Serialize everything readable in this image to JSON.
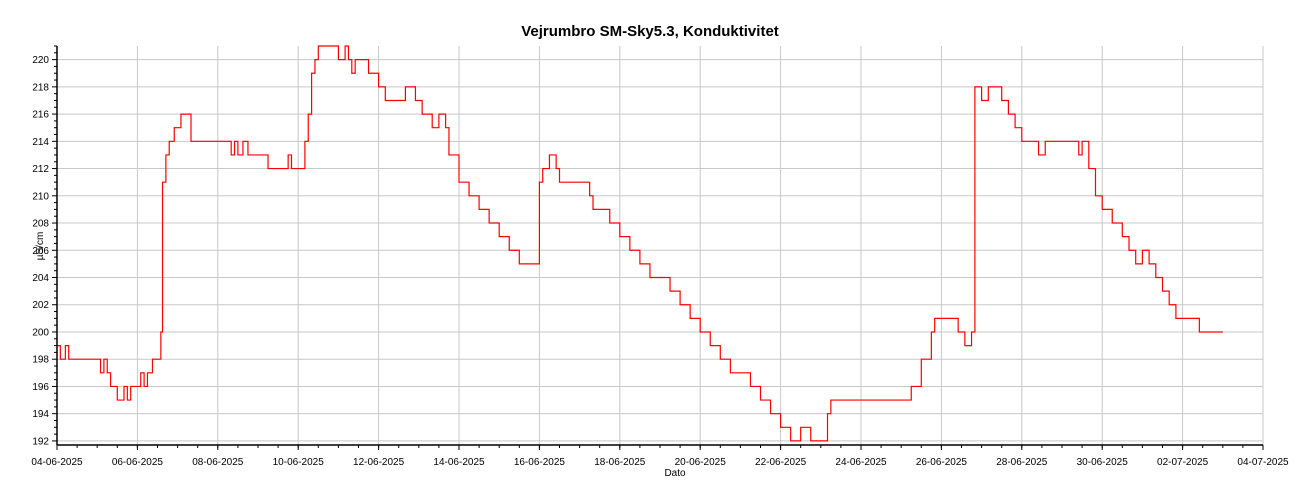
{
  "chart_data": {
    "type": "line",
    "title": "Vejrumbro SM-Sky5.3, Konduktivitet",
    "xlabel": "Dato",
    "ylabel": "µS/cm",
    "ylim": [
      191.7,
      221
    ],
    "xlim": [
      "04-06-2025",
      "04-07-2025"
    ],
    "grid": true,
    "x_ticks": [
      "04-06-2025",
      "06-06-2025",
      "08-06-2025",
      "10-06-2025",
      "12-06-2025",
      "14-06-2025",
      "16-06-2025",
      "18-06-2025",
      "20-06-2025",
      "22-06-2025",
      "24-06-2025",
      "26-06-2025",
      "28-06-2025",
      "30-06-2025",
      "02-07-2025",
      "04-07-2025"
    ],
    "y_ticks": [
      192,
      194,
      196,
      198,
      200,
      202,
      204,
      206,
      208,
      210,
      212,
      214,
      216,
      218,
      220
    ],
    "series": [
      {
        "color": "#ff0000",
        "points": [
          [
            "04-06-2025 00:00",
            199
          ],
          [
            "04-06-2025 02:00",
            198
          ],
          [
            "04-06-2025 05:00",
            199
          ],
          [
            "04-06-2025 07:00",
            198
          ],
          [
            "04-06-2025 16:00",
            198
          ],
          [
            "04-06-2025 23:00",
            198
          ],
          [
            "05-06-2025 02:00",
            197
          ],
          [
            "05-06-2025 04:00",
            198
          ],
          [
            "05-06-2025 06:00",
            197
          ],
          [
            "05-06-2025 08:00",
            196
          ],
          [
            "05-06-2025 12:00",
            195
          ],
          [
            "05-06-2025 16:00",
            196
          ],
          [
            "05-06-2025 18:00",
            195
          ],
          [
            "05-06-2025 20:00",
            196
          ],
          [
            "06-06-2025 00:00",
            196
          ],
          [
            "06-06-2025 02:00",
            197
          ],
          [
            "06-06-2025 04:00",
            196
          ],
          [
            "06-06-2025 06:00",
            197
          ],
          [
            "06-06-2025 09:00",
            198
          ],
          [
            "06-06-2025 13:00",
            198
          ],
          [
            "06-06-2025 14:00",
            200
          ],
          [
            "06-06-2025 15:00",
            211
          ],
          [
            "06-06-2025 17:00",
            213
          ],
          [
            "06-06-2025 19:00",
            214
          ],
          [
            "06-06-2025 22:00",
            215
          ],
          [
            "07-06-2025 02:00",
            216
          ],
          [
            "07-06-2025 06:00",
            216
          ],
          [
            "07-06-2025 08:00",
            214
          ],
          [
            "07-06-2025 12:00",
            214
          ],
          [
            "07-06-2025 18:00",
            214
          ],
          [
            "08-06-2025 00:00",
            214
          ],
          [
            "08-06-2025 06:00",
            214
          ],
          [
            "08-06-2025 08:00",
            213
          ],
          [
            "08-06-2025 10:00",
            214
          ],
          [
            "08-06-2025 12:00",
            213
          ],
          [
            "08-06-2025 15:00",
            214
          ],
          [
            "08-06-2025 18:00",
            213
          ],
          [
            "09-06-2025 00:00",
            213
          ],
          [
            "09-06-2025 06:00",
            212
          ],
          [
            "09-06-2025 12:00",
            212
          ],
          [
            "09-06-2025 18:00",
            213
          ],
          [
            "09-06-2025 20:00",
            212
          ],
          [
            "10-06-2025 00:00",
            212
          ],
          [
            "10-06-2025 04:00",
            214
          ],
          [
            "10-06-2025 06:00",
            216
          ],
          [
            "10-06-2025 08:00",
            219
          ],
          [
            "10-06-2025 10:00",
            220
          ],
          [
            "10-06-2025 12:00",
            221
          ],
          [
            "10-06-2025 18:00",
            221
          ],
          [
            "11-06-2025 00:00",
            220
          ],
          [
            "11-06-2025 04:00",
            221
          ],
          [
            "11-06-2025 06:00",
            220
          ],
          [
            "11-06-2025 08:00",
            219
          ],
          [
            "11-06-2025 10:00",
            220
          ],
          [
            "11-06-2025 12:00",
            220
          ],
          [
            "11-06-2025 16:00",
            220
          ],
          [
            "11-06-2025 18:00",
            219
          ],
          [
            "12-06-2025 00:00",
            218
          ],
          [
            "12-06-2025 04:00",
            217
          ],
          [
            "12-06-2025 12:00",
            217
          ],
          [
            "12-06-2025 16:00",
            218
          ],
          [
            "12-06-2025 22:00",
            217
          ],
          [
            "13-06-2025 02:00",
            216
          ],
          [
            "13-06-2025 08:00",
            215
          ],
          [
            "13-06-2025 12:00",
            216
          ],
          [
            "13-06-2025 16:00",
            215
          ],
          [
            "13-06-2025 18:00",
            213
          ],
          [
            "14-06-2025 00:00",
            211
          ],
          [
            "14-06-2025 06:00",
            210
          ],
          [
            "14-06-2025 12:00",
            209
          ],
          [
            "14-06-2025 18:00",
            208
          ],
          [
            "15-06-2025 00:00",
            207
          ],
          [
            "15-06-2025 06:00",
            206
          ],
          [
            "15-06-2025 12:00",
            205
          ],
          [
            "15-06-2025 20:00",
            205
          ],
          [
            "16-06-2025 00:00",
            211
          ],
          [
            "16-06-2025 02:00",
            212
          ],
          [
            "16-06-2025 06:00",
            213
          ],
          [
            "16-06-2025 10:00",
            212
          ],
          [
            "16-06-2025 12:00",
            211
          ],
          [
            "16-06-2025 18:00",
            211
          ],
          [
            "17-06-2025 00:00",
            211
          ],
          [
            "17-06-2025 06:00",
            210
          ],
          [
            "17-06-2025 08:00",
            209
          ],
          [
            "17-06-2025 12:00",
            209
          ],
          [
            "17-06-2025 18:00",
            208
          ],
          [
            "18-06-2025 00:00",
            207
          ],
          [
            "18-06-2025 06:00",
            206
          ],
          [
            "18-06-2025 12:00",
            205
          ],
          [
            "18-06-2025 18:00",
            204
          ],
          [
            "19-06-2025 00:00",
            204
          ],
          [
            "19-06-2025 06:00",
            203
          ],
          [
            "19-06-2025 12:00",
            202
          ],
          [
            "19-06-2025 18:00",
            201
          ],
          [
            "20-06-2025 00:00",
            200
          ],
          [
            "20-06-2025 06:00",
            199
          ],
          [
            "20-06-2025 12:00",
            198
          ],
          [
            "20-06-2025 18:00",
            197
          ],
          [
            "21-06-2025 00:00",
            197
          ],
          [
            "21-06-2025 06:00",
            196
          ],
          [
            "21-06-2025 12:00",
            195
          ],
          [
            "21-06-2025 18:00",
            194
          ],
          [
            "22-06-2025 00:00",
            193
          ],
          [
            "22-06-2025 06:00",
            192
          ],
          [
            "22-06-2025 12:00",
            193
          ],
          [
            "22-06-2025 18:00",
            192
          ],
          [
            "23-06-2025 00:00",
            192
          ],
          [
            "23-06-2025 04:00",
            194
          ],
          [
            "23-06-2025 06:00",
            195
          ],
          [
            "23-06-2025 12:00",
            195
          ],
          [
            "23-06-2025 18:00",
            195
          ],
          [
            "24-06-2025 12:00",
            195
          ],
          [
            "24-06-2025 18:00",
            195
          ],
          [
            "25-06-2025 00:00",
            195
          ],
          [
            "25-06-2025 06:00",
            196
          ],
          [
            "25-06-2025 12:00",
            198
          ],
          [
            "25-06-2025 18:00",
            200
          ],
          [
            "25-06-2025 20:00",
            201
          ],
          [
            "26-06-2025 00:00",
            201
          ],
          [
            "26-06-2025 06:00",
            201
          ],
          [
            "26-06-2025 10:00",
            200
          ],
          [
            "26-06-2025 14:00",
            199
          ],
          [
            "26-06-2025 18:00",
            200
          ],
          [
            "26-06-2025 20:00",
            218
          ],
          [
            "27-06-2025 00:00",
            217
          ],
          [
            "27-06-2025 04:00",
            218
          ],
          [
            "27-06-2025 08:00",
            218
          ],
          [
            "27-06-2025 12:00",
            217
          ],
          [
            "27-06-2025 16:00",
            216
          ],
          [
            "27-06-2025 20:00",
            215
          ],
          [
            "28-06-2025 00:00",
            214
          ],
          [
            "28-06-2025 06:00",
            214
          ],
          [
            "28-06-2025 10:00",
            213
          ],
          [
            "28-06-2025 14:00",
            214
          ],
          [
            "28-06-2025 20:00",
            214
          ],
          [
            "29-06-2025 06:00",
            214
          ],
          [
            "29-06-2025 10:00",
            213
          ],
          [
            "29-06-2025 12:00",
            214
          ],
          [
            "29-06-2025 16:00",
            212
          ],
          [
            "29-06-2025 20:00",
            210
          ],
          [
            "30-06-2025 00:00",
            209
          ],
          [
            "30-06-2025 06:00",
            208
          ],
          [
            "30-06-2025 12:00",
            207
          ],
          [
            "30-06-2025 16:00",
            206
          ],
          [
            "30-06-2025 20:00",
            205
          ],
          [
            "01-07-2025 00:00",
            206
          ],
          [
            "01-07-2025 04:00",
            205
          ],
          [
            "01-07-2025 08:00",
            204
          ],
          [
            "01-07-2025 12:00",
            203
          ],
          [
            "01-07-2025 16:00",
            202
          ],
          [
            "01-07-2025 20:00",
            201
          ],
          [
            "02-07-2025 00:00",
            201
          ],
          [
            "02-07-2025 06:00",
            201
          ],
          [
            "02-07-2025 10:00",
            200
          ],
          [
            "02-07-2025 14:00",
            200
          ],
          [
            "02-07-2025 18:00",
            200
          ],
          [
            "03-07-2025 00:00",
            200
          ]
        ]
      }
    ]
  }
}
